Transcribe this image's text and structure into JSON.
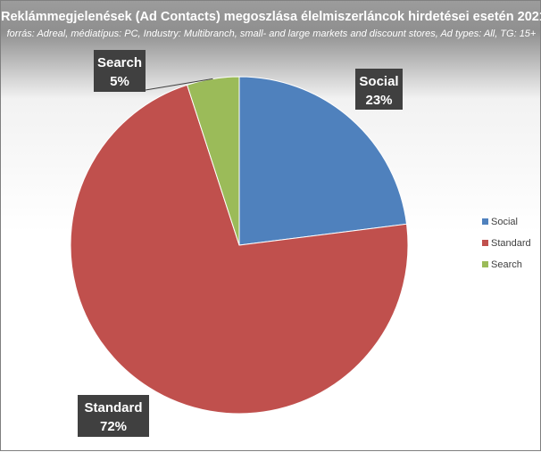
{
  "chart_data": {
    "type": "pie",
    "title": "Reklámmegjelenések (Ad Contacts) megoszlása  élelmiszerláncok hirdetései esetén 2021",
    "subtitle": "forrás: Adreal, médiatípus: PC, Industry: Multibranch, small- and large markets and discount stores, Ad types: All, TG: 15+",
    "slices": [
      {
        "label": "Social",
        "value": 23,
        "value_label": "23%",
        "color": "#4f81bd"
      },
      {
        "label": "Standard",
        "value": 72,
        "value_label": "72%",
        "color": "#c0504d"
      },
      {
        "label": "Search",
        "value": 5,
        "value_label": "5%",
        "color": "#9bbb59"
      }
    ],
    "legend": {
      "position": "right",
      "entries": [
        "Social",
        "Standard",
        "Search"
      ]
    }
  }
}
